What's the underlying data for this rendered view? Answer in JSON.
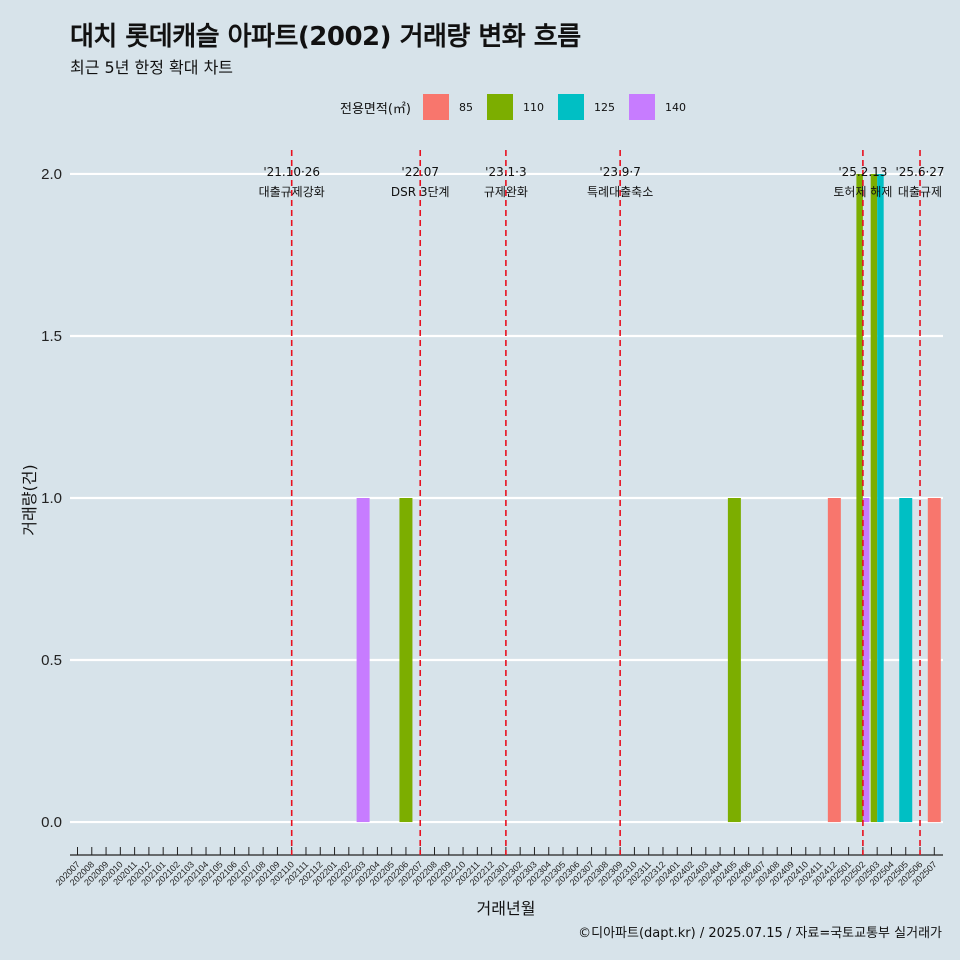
{
  "title": "대치 롯데캐슬 아파트(2002) 거래량 변화 흐름",
  "subtitle": "최근 5년 한정 확대 차트",
  "caption": "©디아파트(dapt.kr) / 2025.07.15 / 자료=국토교통부 실거래가",
  "legend": {
    "title": "전용면적(㎡)",
    "items": [
      {
        "label": "85",
        "color": "#f8766d"
      },
      {
        "label": "110",
        "color": "#7cae00"
      },
      {
        "label": "125",
        "color": "#00bfc4"
      },
      {
        "label": "140",
        "color": "#c77cff"
      }
    ]
  },
  "chart_data": {
    "type": "bar",
    "xlabel": "거래년월",
    "ylabel": "거래량(건)",
    "ylim": [
      -0.08,
      2.08
    ],
    "yticks": [
      "0.0",
      "0.5",
      "1.0",
      "1.5",
      "2.0"
    ],
    "ytick_values": [
      0,
      0.5,
      1,
      1.5,
      2
    ],
    "grid": "horizontal",
    "legend_position": "top",
    "categories": [
      "202007",
      "202008",
      "202009",
      "202010",
      "202011",
      "202012",
      "202101",
      "202102",
      "202103",
      "202104",
      "202105",
      "202106",
      "202107",
      "202108",
      "202109",
      "202110",
      "202111",
      "202112",
      "202201",
      "202202",
      "202203",
      "202204",
      "202205",
      "202206",
      "202207",
      "202208",
      "202209",
      "202210",
      "202211",
      "202212",
      "202301",
      "202302",
      "202303",
      "202304",
      "202305",
      "202306",
      "202307",
      "202308",
      "202309",
      "202310",
      "202311",
      "202312",
      "202401",
      "202402",
      "202403",
      "202404",
      "202405",
      "202406",
      "202407",
      "202408",
      "202409",
      "202410",
      "202411",
      "202412",
      "202501",
      "202502",
      "202503",
      "202504",
      "202505",
      "202506",
      "202507"
    ],
    "bars": [
      {
        "x": "202203",
        "series": "140",
        "value": 1
      },
      {
        "x": "202206",
        "series": "110",
        "value": 1
      },
      {
        "x": "202405",
        "series": "110",
        "value": 1
      },
      {
        "x": "202412",
        "series": "85",
        "value": 1
      },
      {
        "x": "202502",
        "series": "110",
        "value": 2
      },
      {
        "x": "202502",
        "series": "140",
        "value": 1
      },
      {
        "x": "202503",
        "series": "110",
        "value": 2
      },
      {
        "x": "202503",
        "series": "125",
        "value": 2
      },
      {
        "x": "202505",
        "series": "125",
        "value": 1
      },
      {
        "x": "202507",
        "series": "85",
        "value": 1
      }
    ],
    "events": [
      {
        "x": "202110",
        "label1": "'21.10·26",
        "label2": "대출규제강화"
      },
      {
        "x": "202207",
        "label1": "'22.07",
        "label2": "DSR 3단계"
      },
      {
        "x": "202301",
        "label1": "'23.1·3",
        "label2": "규제완화"
      },
      {
        "x": "202309",
        "label1": "'23.9·7",
        "label2": "특례대출축소"
      },
      {
        "x": "202502",
        "label1": "'25.2.13",
        "label2": "토허제 해제"
      },
      {
        "x": "202506",
        "label1": "'25.6·27",
        "label2": "대출규제"
      }
    ]
  }
}
